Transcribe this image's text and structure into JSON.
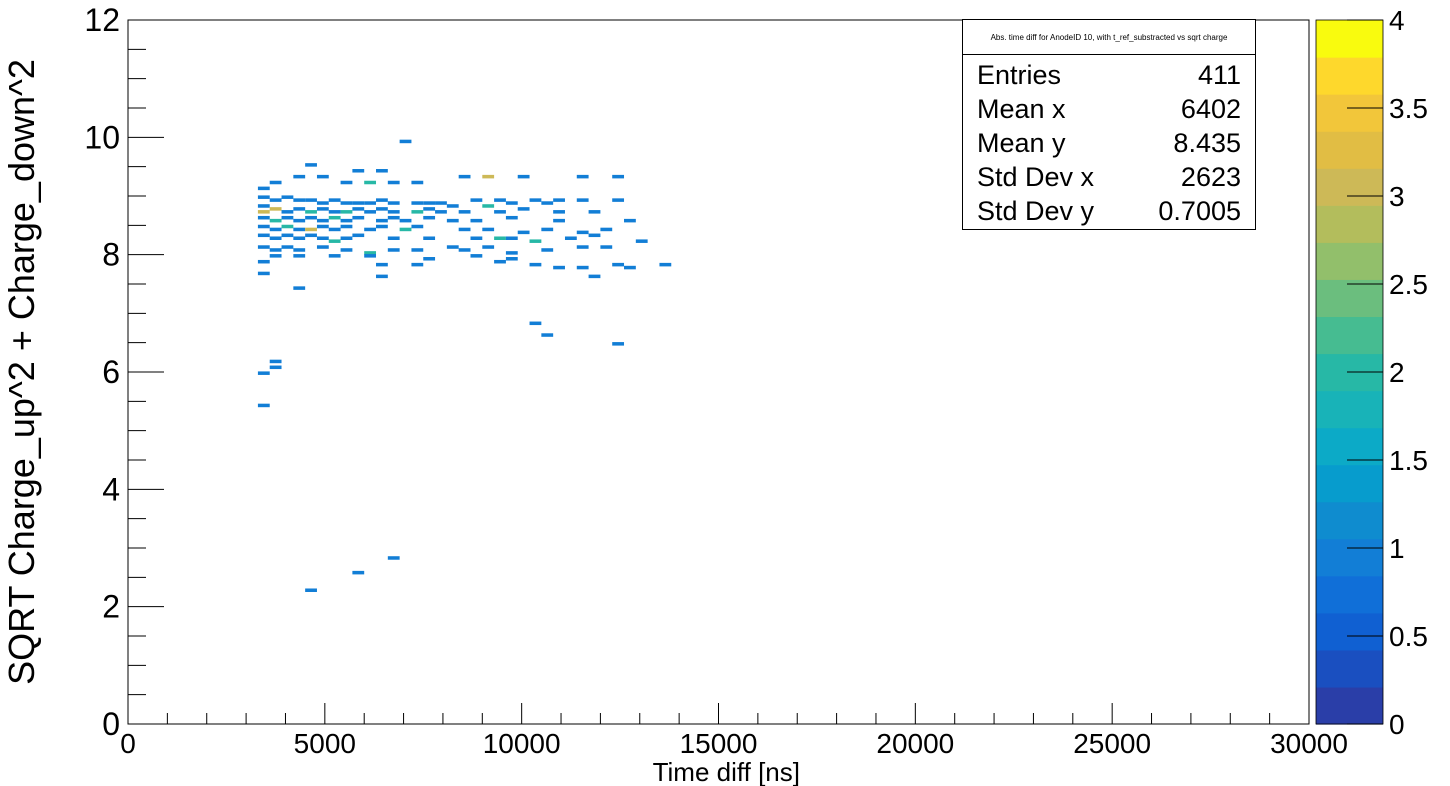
{
  "chart_data": {
    "type": "heatmap",
    "title": "Abs. time diff for AnodeID 10, with t_ref_substracted vs sqrt charge",
    "xlabel": "Time diff [ns]",
    "ylabel": "SQRT Charge_up^2 + Charge_down^2",
    "xlim": [
      0,
      30000
    ],
    "ylim": [
      0,
      12
    ],
    "x_ticks": [
      "0",
      "5000",
      "10000",
      "15000",
      "20000",
      "25000",
      "30000"
    ],
    "y_ticks": [
      "0",
      "2",
      "4",
      "6",
      "8",
      "10",
      "12"
    ],
    "bin_width_x": 300,
    "bin_height_y": 0.06,
    "colorbar": {
      "min": 0,
      "max": 4,
      "ticks": [
        "0",
        "0.5",
        "1",
        "1.5",
        "2",
        "2.5",
        "3",
        "3.5",
        "4"
      ],
      "colors": [
        "#2a3ea8",
        "#1a4fc0",
        "#1060d2",
        "#106fd8",
        "#127ed6",
        "#0f8ccf",
        "#079ccd",
        "#0caac7",
        "#18b3b8",
        "#27b8a6",
        "#46bc91",
        "#6bbe7e",
        "#92bf6b",
        "#b3bd5c",
        "#cdb957",
        "#e1bd44",
        "#f2c63a",
        "#fed82c",
        "#f9fb0e"
      ]
    },
    "stats": [
      {
        "label": "Entries",
        "value": "411"
      },
      {
        "label": "Mean x",
        "value": "6402"
      },
      {
        "label": "Mean y",
        "value": "8.435"
      },
      {
        "label": "Std Dev x",
        "value": "2623"
      },
      {
        "label": "Std Dev y",
        "value": "0.7005"
      }
    ],
    "bins": [
      [
        3300,
        9.1,
        1
      ],
      [
        3600,
        9.2,
        1
      ],
      [
        4200,
        9.3,
        1
      ],
      [
        4500,
        9.5,
        1
      ],
      [
        4800,
        9.3,
        1
      ],
      [
        5400,
        9.2,
        1
      ],
      [
        5700,
        9.4,
        1
      ],
      [
        6300,
        9.4,
        1
      ],
      [
        6900,
        9.9,
        1
      ],
      [
        6600,
        9.2,
        1
      ],
      [
        6000,
        9.2,
        2
      ],
      [
        7200,
        9.2,
        1
      ],
      [
        8400,
        9.3,
        1
      ],
      [
        9000,
        9.3,
        3
      ],
      [
        9900,
        9.3,
        1
      ],
      [
        11400,
        9.3,
        1
      ],
      [
        12300,
        9.3,
        1
      ],
      [
        3300,
        8.95,
        1
      ],
      [
        3600,
        8.9,
        1
      ],
      [
        3900,
        8.95,
        1
      ],
      [
        4200,
        8.9,
        1
      ],
      [
        4500,
        8.9,
        1
      ],
      [
        4800,
        8.85,
        1
      ],
      [
        5100,
        8.9,
        1
      ],
      [
        5400,
        8.85,
        1
      ],
      [
        5700,
        8.85,
        1
      ],
      [
        6000,
        8.85,
        1
      ],
      [
        6300,
        8.9,
        1
      ],
      [
        6600,
        8.85,
        1
      ],
      [
        7200,
        8.85,
        1
      ],
      [
        7500,
        8.85,
        1
      ],
      [
        7800,
        8.85,
        1
      ],
      [
        8100,
        8.8,
        1
      ],
      [
        8700,
        8.9,
        1
      ],
      [
        9000,
        8.8,
        2
      ],
      [
        9300,
        8.9,
        1
      ],
      [
        9600,
        8.85,
        1
      ],
      [
        10200,
        8.9,
        1
      ],
      [
        10500,
        8.85,
        1
      ],
      [
        10800,
        8.9,
        1
      ],
      [
        11400,
        8.9,
        1
      ],
      [
        12300,
        8.9,
        1
      ],
      [
        3300,
        8.8,
        1
      ],
      [
        3300,
        8.7,
        3
      ],
      [
        3600,
        8.75,
        3
      ],
      [
        3900,
        8.7,
        1
      ],
      [
        4200,
        8.75,
        1
      ],
      [
        4500,
        8.7,
        2
      ],
      [
        4800,
        8.75,
        1
      ],
      [
        5100,
        8.7,
        1
      ],
      [
        5400,
        8.7,
        2
      ],
      [
        5700,
        8.75,
        1
      ],
      [
        6000,
        8.7,
        1
      ],
      [
        6300,
        8.75,
        1
      ],
      [
        6600,
        8.7,
        1
      ],
      [
        7200,
        8.7,
        2
      ],
      [
        7500,
        8.75,
        1
      ],
      [
        7800,
        8.7,
        1
      ],
      [
        8400,
        8.7,
        1
      ],
      [
        9300,
        8.7,
        1
      ],
      [
        9900,
        8.75,
        1
      ],
      [
        10800,
        8.7,
        1
      ],
      [
        11700,
        8.7,
        1
      ],
      [
        3300,
        8.6,
        1
      ],
      [
        3600,
        8.55,
        2
      ],
      [
        3900,
        8.6,
        1
      ],
      [
        4200,
        8.55,
        1
      ],
      [
        4500,
        8.6,
        1
      ],
      [
        4800,
        8.55,
        1
      ],
      [
        5100,
        8.6,
        2
      ],
      [
        5400,
        8.55,
        1
      ],
      [
        5700,
        8.6,
        1
      ],
      [
        6300,
        8.55,
        1
      ],
      [
        6600,
        8.6,
        1
      ],
      [
        6900,
        8.55,
        1
      ],
      [
        7500,
        8.6,
        1
      ],
      [
        8100,
        8.55,
        1
      ],
      [
        8700,
        8.55,
        1
      ],
      [
        9600,
        8.6,
        1
      ],
      [
        10800,
        8.55,
        1
      ],
      [
        12600,
        8.55,
        1
      ],
      [
        3300,
        8.45,
        1
      ],
      [
        3600,
        8.4,
        1
      ],
      [
        3900,
        8.45,
        2
      ],
      [
        4200,
        8.4,
        1
      ],
      [
        4500,
        8.4,
        3
      ],
      [
        4800,
        8.45,
        1
      ],
      [
        5100,
        8.4,
        1
      ],
      [
        5400,
        8.45,
        1
      ],
      [
        6000,
        8.4,
        1
      ],
      [
        6300,
        8.45,
        1
      ],
      [
        6900,
        8.4,
        2
      ],
      [
        7200,
        8.45,
        1
      ],
      [
        8400,
        8.4,
        1
      ],
      [
        9000,
        8.4,
        1
      ],
      [
        9900,
        8.35,
        1
      ],
      [
        10500,
        8.4,
        1
      ],
      [
        11400,
        8.35,
        1
      ],
      [
        12000,
        8.4,
        1
      ],
      [
        3300,
        8.3,
        1
      ],
      [
        3600,
        8.25,
        1
      ],
      [
        3900,
        8.3,
        1
      ],
      [
        4200,
        8.25,
        1
      ],
      [
        4500,
        8.3,
        1
      ],
      [
        4800,
        8.25,
        1
      ],
      [
        5100,
        8.2,
        2
      ],
      [
        5400,
        8.25,
        1
      ],
      [
        5700,
        8.3,
        1
      ],
      [
        6600,
        8.25,
        1
      ],
      [
        7500,
        8.25,
        1
      ],
      [
        8700,
        8.25,
        1
      ],
      [
        9300,
        8.25,
        2
      ],
      [
        9600,
        8.25,
        1
      ],
      [
        10200,
        8.2,
        2
      ],
      [
        11100,
        8.25,
        1
      ],
      [
        11700,
        8.3,
        1
      ],
      [
        12900,
        8.2,
        1
      ],
      [
        3300,
        8.1,
        1
      ],
      [
        3600,
        8.05,
        1
      ],
      [
        3900,
        8.1,
        1
      ],
      [
        4200,
        8.05,
        1
      ],
      [
        4800,
        8.1,
        1
      ],
      [
        5400,
        8.05,
        1
      ],
      [
        6000,
        8.0,
        2
      ],
      [
        6600,
        8.05,
        1
      ],
      [
        7200,
        8.05,
        1
      ],
      [
        8100,
        8.1,
        1
      ],
      [
        8400,
        8.05,
        1
      ],
      [
        9000,
        8.1,
        1
      ],
      [
        9600,
        8.0,
        1
      ],
      [
        10500,
        8.05,
        1
      ],
      [
        11400,
        8.1,
        1
      ],
      [
        12000,
        8.1,
        1
      ],
      [
        3600,
        7.95,
        1
      ],
      [
        4200,
        7.95,
        1
      ],
      [
        5100,
        7.95,
        1
      ],
      [
        6000,
        7.95,
        1
      ],
      [
        7500,
        7.9,
        1
      ],
      [
        8700,
        7.95,
        1
      ],
      [
        9300,
        7.85,
        1
      ],
      [
        9600,
        7.9,
        1
      ],
      [
        10200,
        7.8,
        1
      ],
      [
        10800,
        7.75,
        1
      ],
      [
        11400,
        7.75,
        1
      ],
      [
        12300,
        7.8,
        1
      ],
      [
        12600,
        7.75,
        1
      ],
      [
        13500,
        7.8,
        1
      ],
      [
        6300,
        7.6,
        1
      ],
      [
        7200,
        7.8,
        1
      ],
      [
        11700,
        7.6,
        1
      ],
      [
        3300,
        7.65,
        1
      ],
      [
        3300,
        7.85,
        1
      ],
      [
        6300,
        7.8,
        1
      ],
      [
        4200,
        7.4,
        1
      ],
      [
        10200,
        6.8,
        1
      ],
      [
        10500,
        6.6,
        1
      ],
      [
        12300,
        6.45,
        1
      ],
      [
        3600,
        6.15,
        1
      ],
      [
        3600,
        6.05,
        1
      ],
      [
        3300,
        5.95,
        1
      ],
      [
        3300,
        5.4,
        1
      ],
      [
        6600,
        2.8,
        1
      ],
      [
        5700,
        2.55,
        1
      ],
      [
        4500,
        2.25,
        1
      ]
    ]
  }
}
